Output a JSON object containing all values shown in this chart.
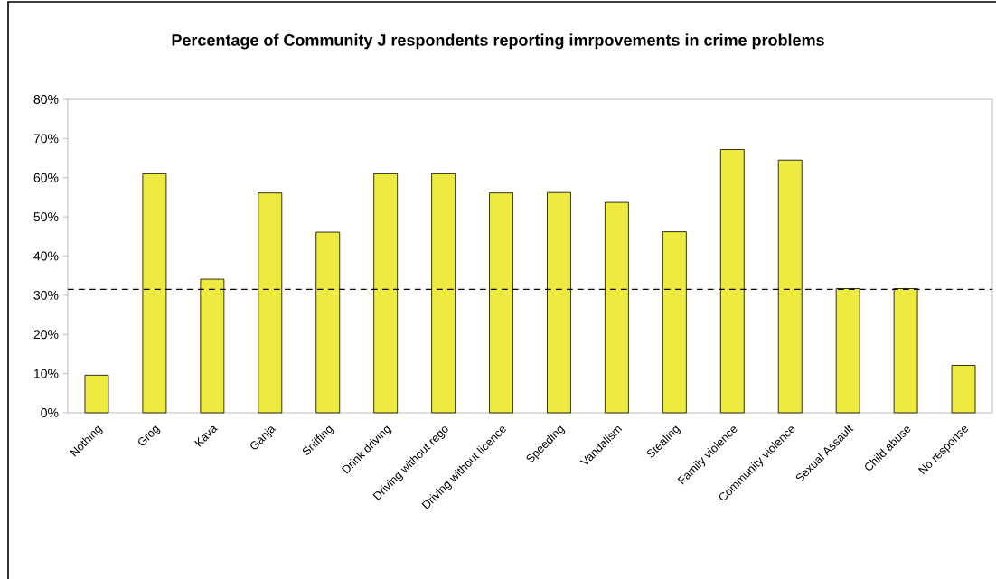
{
  "chart_data": {
    "type": "bar",
    "title": "Percentage of Community J respondents reporting imrpovements in crime problems",
    "categories": [
      "Nothing",
      "Grog",
      "Kava",
      "Ganja",
      "Sniffing",
      "Drink driving",
      "Driving without rego",
      "Driving without licence",
      "Speeding",
      "Vandalism",
      "Stealing",
      "Family violence",
      "Community violence",
      "Sexual Assault",
      "Child abuse",
      "No response"
    ],
    "values": [
      9.6,
      61.0,
      34.1,
      56.1,
      46.1,
      61.0,
      61.0,
      56.1,
      56.2,
      53.7,
      46.2,
      67.2,
      64.5,
      31.7,
      31.7,
      12.1
    ],
    "color": "#eeea3f",
    "ylim": [
      0,
      80
    ],
    "yticks": [
      {
        "value": 0,
        "label": "0%"
      },
      {
        "value": 10,
        "label": "10%"
      },
      {
        "value": 20,
        "label": "20%"
      },
      {
        "value": 30,
        "label": "30%"
      },
      {
        "value": 40,
        "label": "40%"
      },
      {
        "value": 50,
        "label": "50%"
      },
      {
        "value": 60,
        "label": "60%"
      },
      {
        "value": 70,
        "label": "70%"
      },
      {
        "value": 80,
        "label": "80%"
      }
    ],
    "ref_lines": [
      {
        "axis": "y",
        "value": 31.5,
        "color": "#000000",
        "line_style": "dashed"
      }
    ],
    "grid": false
  }
}
